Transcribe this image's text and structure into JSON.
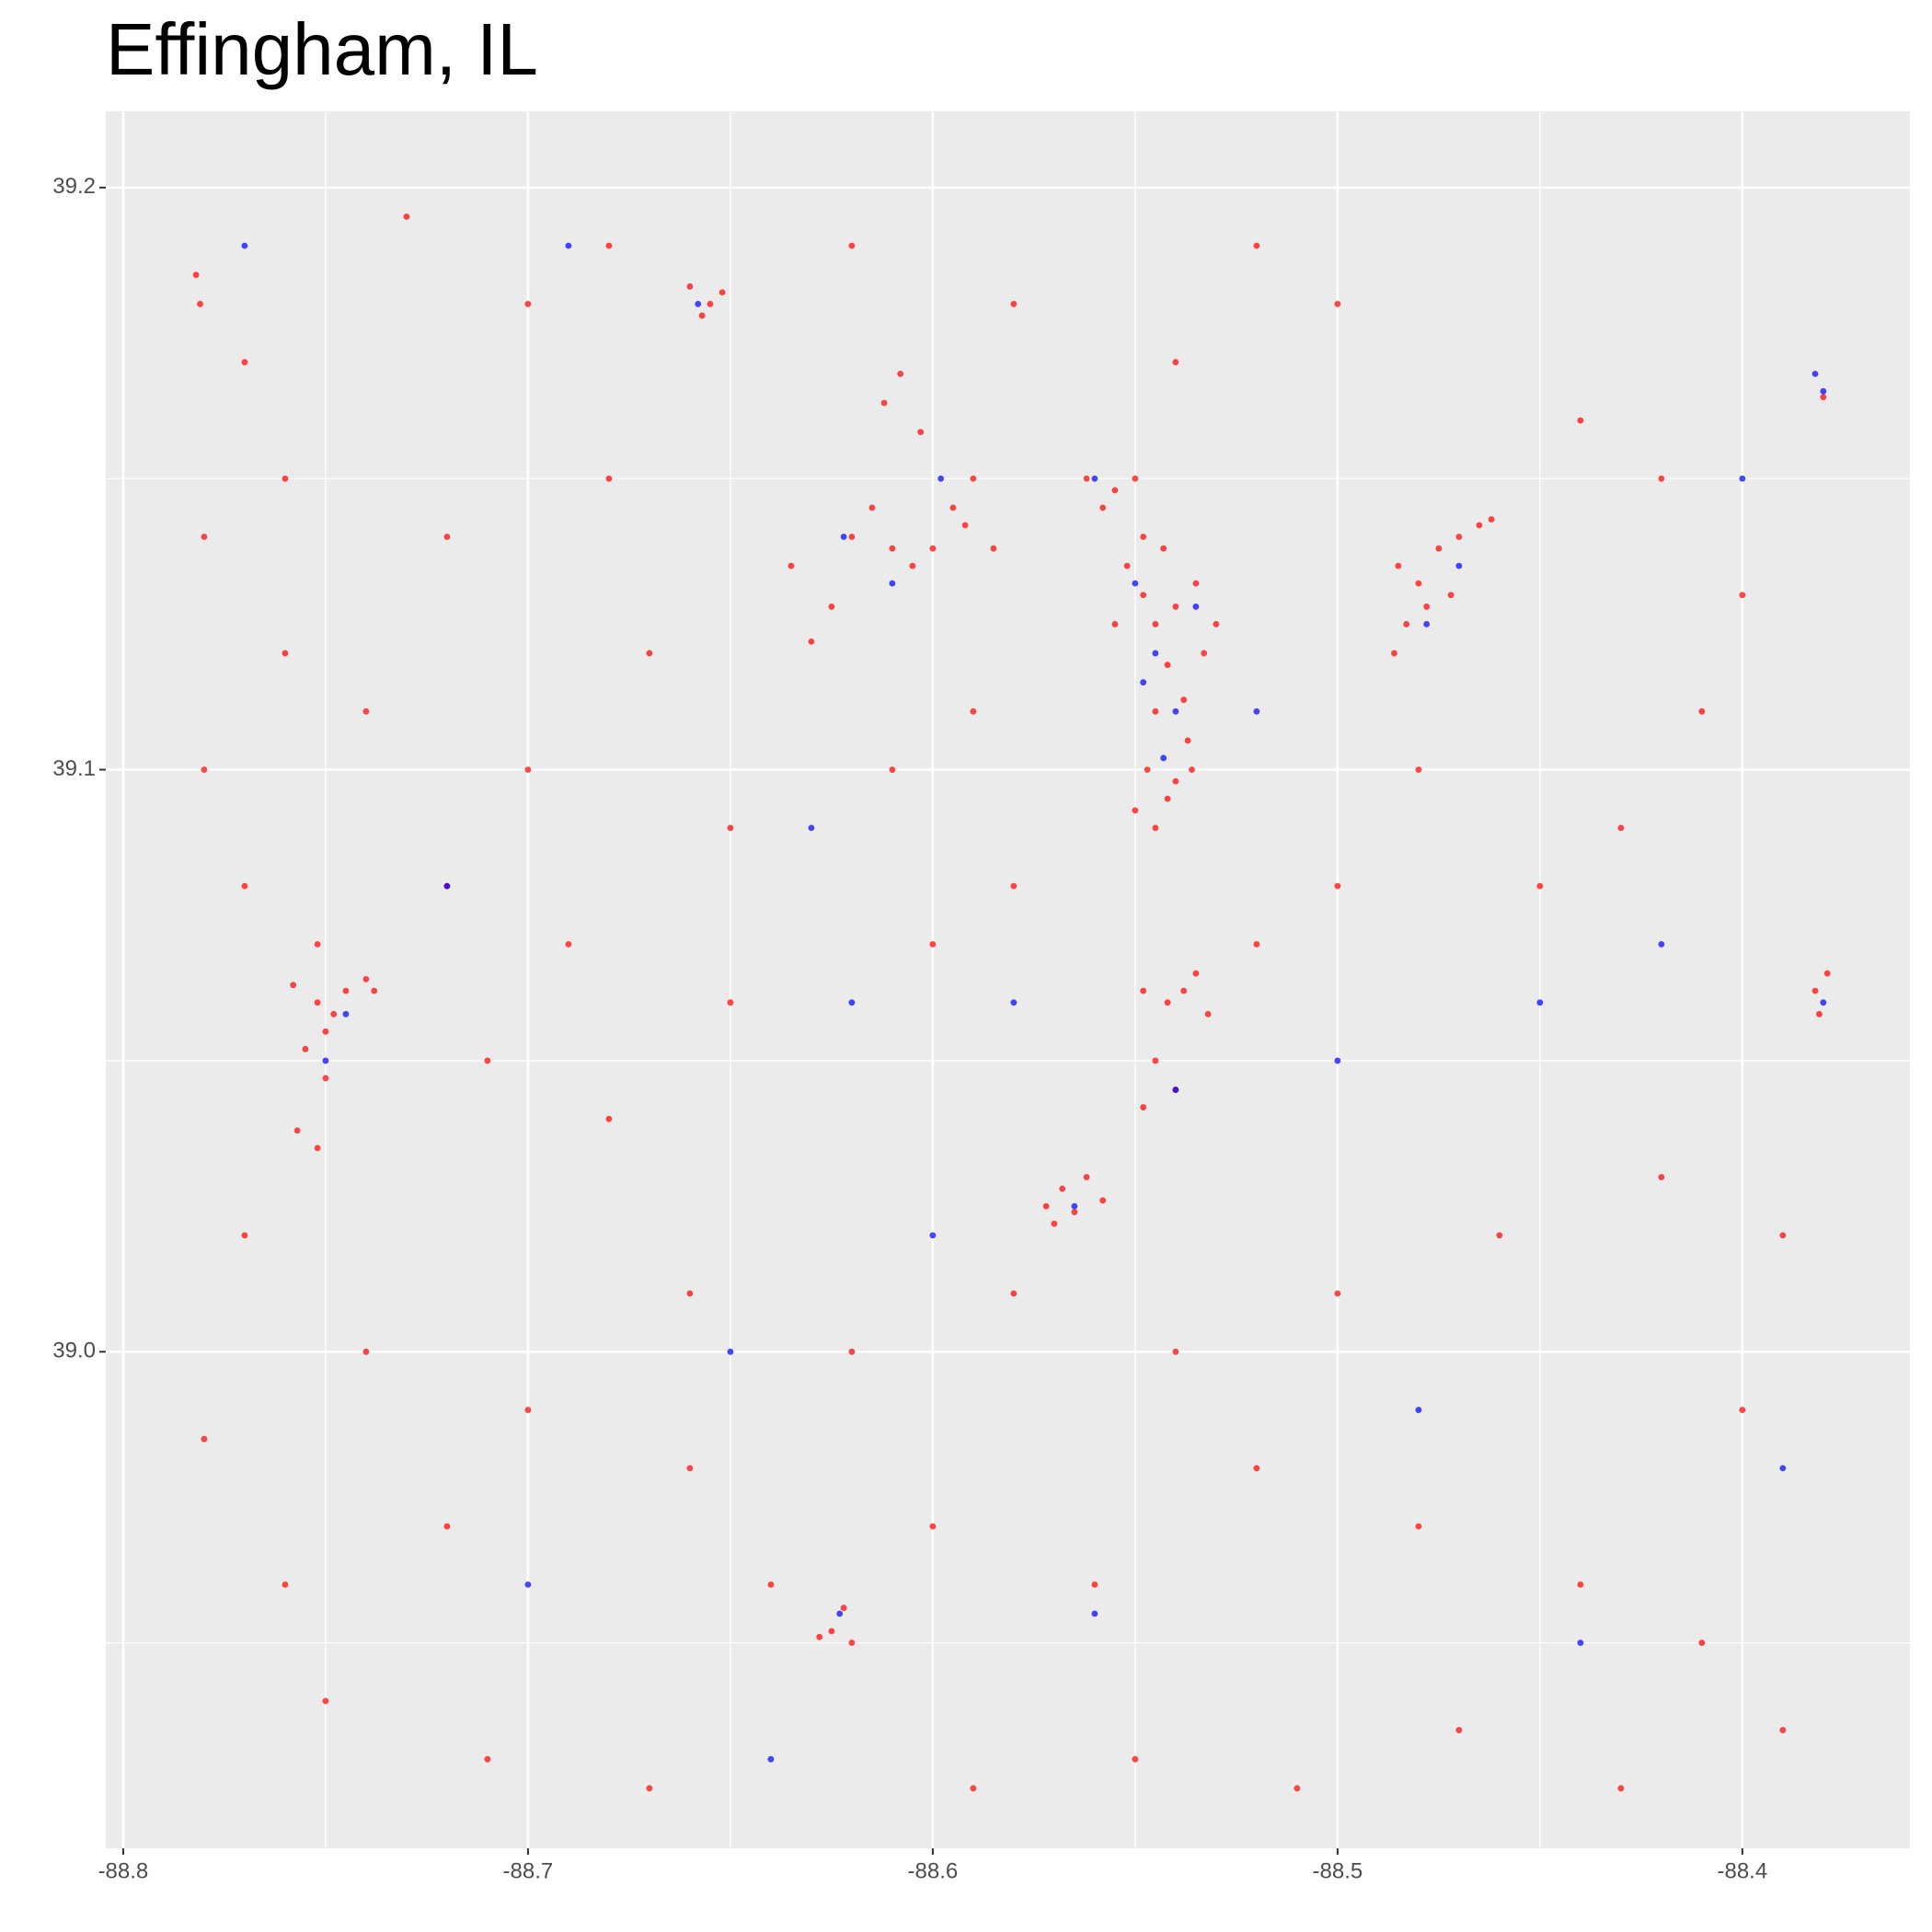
{
  "chart_data": {
    "type": "scatter",
    "title": "Effingham, IL",
    "xlim": [
      -88.8043,
      -88.3586
    ],
    "ylim": [
      38.9147,
      39.2131
    ],
    "xticks": [
      -88.8,
      -88.7,
      -88.6,
      -88.5,
      -88.4
    ],
    "yticks": [
      {
        "value": 39.0,
        "label": "39.0"
      },
      39.1,
      39.2
    ],
    "grid": true,
    "series": [
      {
        "color": "#ff0000",
        "x": [
          -88.552,
          -88.548,
          -88.545,
          -88.54,
          -88.535,
          -88.542,
          -88.538,
          -88.545,
          -88.533,
          -88.548,
          -88.543,
          -88.555,
          -88.53,
          -88.537,
          -88.547,
          -88.542,
          -88.545,
          -88.54,
          -88.536,
          -88.55,
          -88.62,
          -88.615,
          -88.61,
          -88.605,
          -88.6,
          -88.595,
          -88.59,
          -88.585,
          -88.625,
          -88.63,
          -88.608,
          -88.612,
          -88.603,
          -88.592,
          -88.635,
          -88.562,
          -88.555,
          -88.558,
          -88.55,
          -88.485,
          -88.48,
          -88.475,
          -88.47,
          -88.465,
          -88.478,
          -88.483,
          -88.486,
          -88.472,
          -88.462,
          -88.758,
          -88.752,
          -88.748,
          -88.745,
          -88.74,
          -88.75,
          -88.755,
          -88.75,
          -88.752,
          -88.738,
          -88.757,
          -88.752,
          -88.572,
          -88.568,
          -88.562,
          -88.565,
          -88.558,
          -88.57,
          -88.548,
          -88.542,
          -88.538,
          -88.532,
          -88.545,
          -88.54,
          -88.548,
          -88.535,
          -88.625,
          -88.62,
          -88.622,
          -88.628,
          -88.66,
          -88.655,
          -88.652,
          -88.657,
          -88.382,
          -88.379,
          -88.381,
          -88.38,
          -88.782,
          -88.781,
          -88.77,
          -88.73,
          -88.7,
          -88.68,
          -88.72,
          -88.76,
          -88.78,
          -88.74,
          -88.7,
          -88.67,
          -88.65,
          -88.69,
          -88.72,
          -88.77,
          -88.71,
          -88.68,
          -88.65,
          -88.6,
          -88.58,
          -88.61,
          -88.59,
          -88.52,
          -88.5,
          -88.48,
          -88.45,
          -88.43,
          -88.41,
          -88.4,
          -88.42,
          -88.44,
          -88.5,
          -88.52,
          -88.54,
          -88.58,
          -88.62,
          -88.68,
          -88.76,
          -88.78,
          -88.77,
          -88.74,
          -88.7,
          -88.66,
          -88.64,
          -88.6,
          -88.56,
          -88.52,
          -88.48,
          -88.44,
          -88.41,
          -88.4,
          -88.39,
          -88.42,
          -88.46,
          -88.5,
          -88.54,
          -88.58,
          -88.62,
          -88.66,
          -88.72,
          -88.76,
          -88.75,
          -88.71,
          -88.67,
          -88.59,
          -88.55,
          -88.51,
          -88.47,
          -88.43,
          -88.39,
          -88.78
        ],
        "values": [
          39.135,
          39.13,
          39.125,
          39.128,
          39.132,
          39.118,
          39.112,
          39.11,
          39.12,
          39.14,
          39.138,
          39.125,
          39.125,
          39.105,
          39.1,
          39.095,
          39.09,
          39.098,
          39.1,
          39.093,
          39.14,
          39.145,
          39.138,
          39.135,
          39.138,
          39.145,
          39.15,
          39.138,
          39.128,
          39.122,
          39.168,
          39.163,
          39.158,
          39.142,
          39.135,
          39.15,
          39.148,
          39.145,
          39.15,
          39.135,
          39.132,
          39.138,
          39.14,
          39.142,
          39.128,
          39.125,
          39.12,
          39.13,
          39.143,
          39.063,
          39.06,
          39.058,
          39.062,
          39.064,
          39.055,
          39.052,
          39.047,
          39.07,
          39.062,
          39.038,
          39.035,
          39.025,
          39.028,
          39.03,
          39.024,
          39.026,
          39.022,
          39.062,
          39.06,
          39.062,
          39.058,
          39.05,
          39.045,
          39.042,
          39.065,
          38.952,
          38.95,
          38.956,
          38.951,
          39.183,
          39.18,
          39.182,
          39.178,
          39.062,
          39.065,
          39.058,
          39.164,
          39.185,
          39.18,
          39.17,
          39.195,
          39.18,
          39.15,
          39.14,
          39.12,
          39.1,
          39.11,
          39.1,
          39.12,
          39.09,
          39.07,
          39.08,
          39.08,
          39.05,
          39.04,
          39.06,
          39.07,
          39.08,
          39.1,
          39.11,
          39.07,
          39.08,
          39.1,
          39.08,
          39.09,
          39.11,
          39.13,
          39.15,
          39.16,
          39.18,
          39.19,
          39.17,
          39.18,
          39.19,
          39.19,
          39.15,
          39.14,
          39.02,
          39.0,
          38.99,
          38.98,
          38.96,
          38.97,
          38.96,
          38.98,
          38.97,
          38.96,
          38.95,
          38.99,
          39.02,
          39.03,
          39.02,
          39.01,
          39.0,
          39.01,
          39.0,
          39.01,
          38.97,
          38.96,
          38.94,
          38.93,
          38.925,
          38.925,
          38.93,
          38.925,
          38.935,
          38.925,
          38.935,
          38.985
        ]
      },
      {
        "color": "#0000ff",
        "x": [
          -88.545,
          -88.54,
          -88.548,
          -88.535,
          -88.543,
          -88.55,
          -88.622,
          -88.61,
          -88.598,
          -88.478,
          -88.47,
          -88.75,
          -88.745,
          -88.565,
          -88.54,
          -88.623,
          -88.658,
          -88.38,
          -88.382,
          -88.38,
          -88.56,
          -88.69,
          -88.63,
          -88.62,
          -88.58,
          -88.5,
          -88.45,
          -88.42,
          -88.4,
          -88.72,
          -88.77,
          -88.65,
          -88.56,
          -88.48,
          -88.44,
          -88.39,
          -88.7,
          -88.6,
          -88.52,
          -88.64
        ],
        "values": [
          39.12,
          39.11,
          39.115,
          39.128,
          39.102,
          39.132,
          39.14,
          39.132,
          39.15,
          39.125,
          39.135,
          39.05,
          39.058,
          39.025,
          39.045,
          38.955,
          39.18,
          39.165,
          39.168,
          39.06,
          39.15,
          39.19,
          39.09,
          39.06,
          39.06,
          39.05,
          39.06,
          39.07,
          39.15,
          39.08,
          39.19,
          39.0,
          38.955,
          38.99,
          38.95,
          38.98,
          38.96,
          39.02,
          39.11,
          38.93
        ]
      }
    ]
  }
}
